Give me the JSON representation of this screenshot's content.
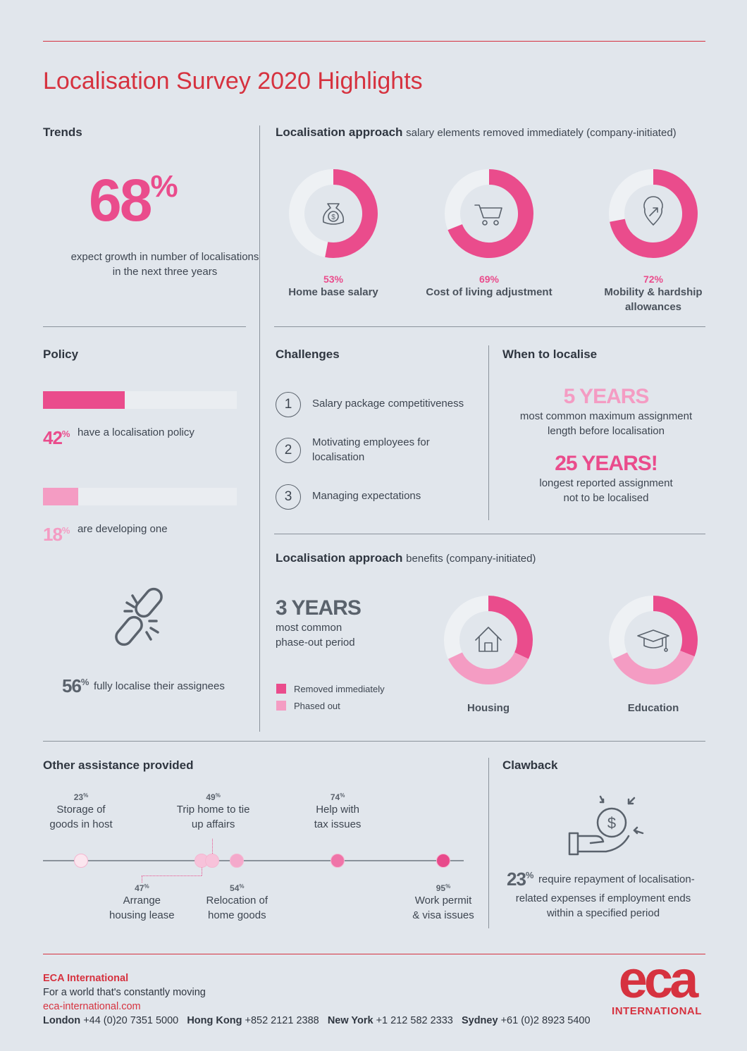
{
  "title": "Localisation Survey 2020 Highlights",
  "trends": {
    "heading": "Trends",
    "value": "68",
    "value_suffix": "%",
    "caption_line1": "expect growth in number of localisations",
    "caption_line2": "in the next three years"
  },
  "approach_salary": {
    "heading": "Localisation approach",
    "subheading": "salary elements removed immediately (company-initiated)",
    "items": [
      {
        "pct": "53%",
        "value": 53,
        "label": "Home base salary",
        "label2": "",
        "icon": "money-bag-icon"
      },
      {
        "pct": "69%",
        "value": 69,
        "label": "Cost of living adjustment",
        "label2": "",
        "icon": "shopping-cart-icon"
      },
      {
        "pct": "72%",
        "value": 72,
        "label": "Mobility & hardship",
        "label2": "allowances",
        "icon": "location-arrow-icon"
      }
    ]
  },
  "policy": {
    "heading": "Policy",
    "items": [
      {
        "value_num": "42",
        "value_sign": "%",
        "value": 42,
        "text": "have a localisation policy",
        "color": "#ea4c8c"
      },
      {
        "value_num": "18",
        "value_sign": "%",
        "value": 18,
        "text": "are developing one",
        "color": "#f49cc3"
      }
    ],
    "fully": {
      "value_num": "56",
      "value_sign": "%",
      "text": "fully localise their assignees",
      "icon": "broken-chain-icon"
    }
  },
  "challenges": {
    "heading": "Challenges",
    "items": [
      {
        "num": "1",
        "line1": "Salary package competitiveness",
        "line2": ""
      },
      {
        "num": "2",
        "line1": "Motivating employees for",
        "line2": "localisation"
      },
      {
        "num": "3",
        "line1": "Managing expectations",
        "line2": ""
      }
    ]
  },
  "when_to_localise": {
    "heading": "When to localise",
    "stat1": {
      "value": "5 YEARS",
      "line1": "most common maximum assignment",
      "line2": "length before localisation"
    },
    "stat2": {
      "value": "25 YEARS!",
      "line1": "longest reported assignment",
      "line2": "not to be localised"
    }
  },
  "approach_benefits": {
    "heading": "Localisation approach",
    "subheading": "benefits (company-initiated)",
    "phase_out": {
      "value": "3 YEARS",
      "line1": "most common",
      "line2": "phase-out period"
    },
    "legend": [
      {
        "label": "Removed immediately",
        "color": "#ea4c8c"
      },
      {
        "label": "Phased out",
        "color": "#f49cc3"
      }
    ],
    "donuts": [
      {
        "label": "Housing",
        "removed": 32,
        "phased": 36,
        "icon": "house-icon"
      },
      {
        "label": "Education",
        "removed": 31,
        "phased": 37,
        "icon": "graduation-cap-icon"
      }
    ]
  },
  "other_assistance": {
    "heading": "Other assistance provided",
    "items": [
      {
        "pct_num": "23",
        "value": 23,
        "line1": "Storage of",
        "line2": "goods in host",
        "pos": "above"
      },
      {
        "pct_num": "47",
        "value": 47,
        "line1": "Arrange",
        "line2": "housing lease",
        "pos": "below"
      },
      {
        "pct_num": "49",
        "value": 49,
        "line1": "Trip home to tie",
        "line2": "up affairs",
        "pos": "above"
      },
      {
        "pct_num": "54",
        "value": 54,
        "line1": "Relocation of",
        "line2": "home goods",
        "pos": "below"
      },
      {
        "pct_num": "74",
        "value": 74,
        "line1": "Help with",
        "line2": "tax issues",
        "pos": "above"
      },
      {
        "pct_num": "95",
        "value": 95,
        "line1": "Work permit",
        "line2": "& visa issues",
        "pos": "below"
      }
    ],
    "pct_sign": "%"
  },
  "clawback": {
    "heading": "Clawback",
    "value_num": "23",
    "value_sign": "%",
    "line1": "require repayment of localisation-",
    "line2": "related expenses if employment ends",
    "line3": "within a specified period",
    "icon": "hand-coin-icon"
  },
  "footer": {
    "company": "ECA International",
    "tagline": "For a world that's constantly moving",
    "website": "eca-international.com",
    "offices": [
      {
        "city": "London",
        "phone": "+44 (0)20 7351 5000"
      },
      {
        "city": "Hong Kong",
        "phone": "+852 2121 2388"
      },
      {
        "city": "New York",
        "phone": "+1 212 582 2333"
      },
      {
        "city": "Sydney",
        "phone": "+61 (0)2 8923 5400"
      }
    ],
    "logo_text": "eca",
    "logo_sub": "INTERNATIONAL"
  },
  "colors": {
    "brand_red": "#d6323f",
    "pink": "#ea4c8c",
    "light_pink": "#f49cc3",
    "track": "#eaedf1",
    "background": "#e1e6ec"
  }
}
